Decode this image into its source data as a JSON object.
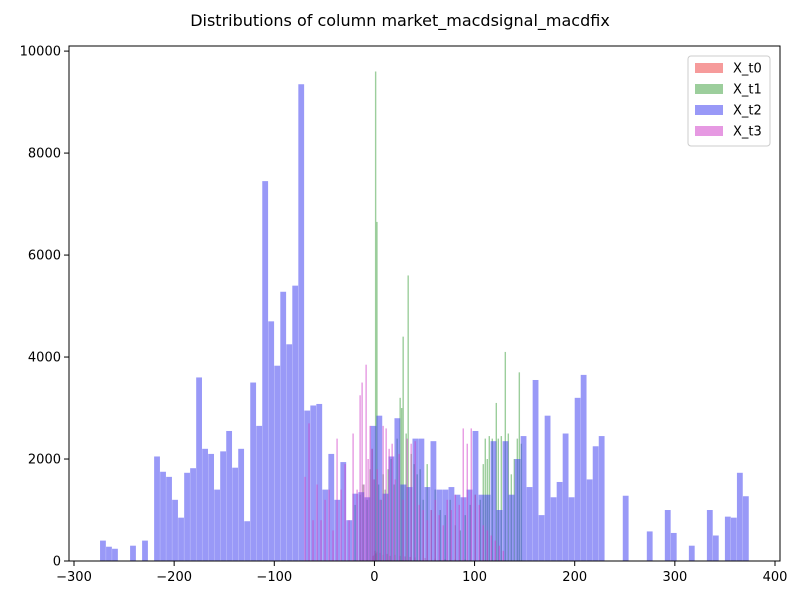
{
  "chart_data": {
    "type": "histogram",
    "title": "Distributions of column market_macdsignal_macdfix",
    "xlabel": "",
    "ylabel": "",
    "xlim": [
      -305,
      405
    ],
    "ylim": [
      0,
      10100
    ],
    "x_ticks": [
      -300,
      -200,
      -100,
      0,
      100,
      200,
      300,
      400
    ],
    "y_ticks": [
      0,
      2000,
      4000,
      6000,
      8000,
      10000
    ],
    "grid": false,
    "legend_position": "top-right",
    "colors": {
      "X_t0": "#f0595999",
      "X_t1": "#3a9e3a80",
      "X_t2": "#4040f088",
      "X_t3": "#d040c888"
    },
    "series": [
      {
        "name": "X_t0",
        "bin_width": 1,
        "bins": [
          [
            -2,
            100
          ],
          [
            -1,
            120
          ],
          [
            0,
            200
          ],
          [
            1,
            150
          ],
          [
            2,
            180
          ],
          [
            5,
            160
          ],
          [
            8,
            120
          ],
          [
            12,
            140
          ],
          [
            15,
            100
          ],
          [
            20,
            120
          ],
          [
            25,
            100
          ],
          [
            30,
            90
          ],
          [
            35,
            80
          ],
          [
            40,
            70
          ],
          [
            50,
            60
          ],
          [
            60,
            50
          ],
          [
            70,
            40
          ],
          [
            80,
            30
          ],
          [
            90,
            30
          ],
          [
            100,
            20
          ],
          [
            110,
            20
          ],
          [
            120,
            20
          ],
          [
            130,
            15
          ],
          [
            140,
            10
          ]
        ]
      },
      {
        "name": "X_t1",
        "bin_width": 1.4,
        "bins": [
          [
            -20,
            1100
          ],
          [
            -15,
            1300
          ],
          [
            -12,
            1500
          ],
          [
            -8,
            1200
          ],
          [
            -5,
            1800
          ],
          [
            -3,
            2200
          ],
          [
            -1,
            1600
          ],
          [
            0.5,
            9600
          ],
          [
            1.8,
            6650
          ],
          [
            3.5,
            1500
          ],
          [
            6,
            1200
          ],
          [
            8,
            1700
          ],
          [
            10,
            1400
          ],
          [
            13,
            1800
          ],
          [
            16,
            2000
          ],
          [
            19,
            1500
          ],
          [
            22,
            2400
          ],
          [
            25,
            3200
          ],
          [
            26.5,
            3000
          ],
          [
            28,
            4400
          ],
          [
            31,
            2500
          ],
          [
            33,
            5600
          ],
          [
            36,
            2100
          ],
          [
            39,
            1900
          ],
          [
            42,
            1700
          ],
          [
            45,
            1800
          ],
          [
            48,
            1200
          ],
          [
            52,
            1900
          ],
          [
            56,
            1000
          ],
          [
            60,
            1400
          ],
          [
            65,
            1000
          ],
          [
            70,
            900
          ],
          [
            75,
            1200
          ],
          [
            80,
            700
          ],
          [
            85,
            600
          ],
          [
            90,
            900
          ],
          [
            95,
            1100
          ],
          [
            100,
            1300
          ],
          [
            105,
            1200
          ],
          [
            108,
            1900
          ],
          [
            110,
            2400
          ],
          [
            112,
            2000
          ],
          [
            114,
            2450
          ],
          [
            117,
            2400
          ],
          [
            121,
            3100
          ],
          [
            123,
            2400
          ],
          [
            126,
            2450
          ],
          [
            130,
            4100
          ],
          [
            133,
            2500
          ],
          [
            136,
            1700
          ],
          [
            139,
            2000
          ],
          [
            142,
            2400
          ],
          [
            144,
            3700
          ],
          [
            146,
            2300
          ]
        ]
      },
      {
        "name": "X_t2",
        "bin_width": 5.8,
        "bins": [
          [
            -274,
            400
          ],
          [
            -268,
            280
          ],
          [
            -262,
            240
          ],
          [
            -256,
            0
          ],
          [
            -250,
            0
          ],
          [
            -244,
            300
          ],
          [
            -238,
            0
          ],
          [
            -232,
            400
          ],
          [
            -226,
            0
          ],
          [
            -220,
            2050
          ],
          [
            -214,
            1750
          ],
          [
            -208,
            1650
          ],
          [
            -202,
            1200
          ],
          [
            -196,
            850
          ],
          [
            -190,
            1730
          ],
          [
            -184,
            1820
          ],
          [
            -178,
            3600
          ],
          [
            -172,
            2200
          ],
          [
            -166,
            2100
          ],
          [
            -160,
            1400
          ],
          [
            -154,
            2150
          ],
          [
            -148,
            2550
          ],
          [
            -142,
            1830
          ],
          [
            -136,
            2200
          ],
          [
            -130,
            780
          ],
          [
            -124,
            3500
          ],
          [
            -118,
            2650
          ],
          [
            -112,
            7450
          ],
          [
            -106,
            4700
          ],
          [
            -100,
            3830
          ],
          [
            -94,
            5280
          ],
          [
            -88,
            4250
          ],
          [
            -82,
            5400
          ],
          [
            -76,
            9350
          ],
          [
            -70,
            2950
          ],
          [
            -64,
            3050
          ],
          [
            -58,
            3080
          ],
          [
            -52,
            1400
          ],
          [
            -46,
            2100
          ],
          [
            -40,
            1200
          ],
          [
            -34,
            1940
          ],
          [
            -28,
            800
          ],
          [
            -22,
            1320
          ],
          [
            -16,
            1350
          ],
          [
            -10,
            1250
          ],
          [
            -4,
            2650
          ],
          [
            2,
            2850
          ],
          [
            8,
            1320
          ],
          [
            14,
            2050
          ],
          [
            20,
            2800
          ],
          [
            26,
            1500
          ],
          [
            32,
            1450
          ],
          [
            38,
            2400
          ],
          [
            44,
            2400
          ],
          [
            50,
            1450
          ],
          [
            56,
            2350
          ],
          [
            62,
            1400
          ],
          [
            68,
            1400
          ],
          [
            74,
            1450
          ],
          [
            80,
            1300
          ],
          [
            86,
            1250
          ],
          [
            92,
            1400
          ],
          [
            98,
            2550
          ],
          [
            104,
            1300
          ],
          [
            110,
            1300
          ],
          [
            116,
            2350
          ],
          [
            122,
            1000
          ],
          [
            128,
            2350
          ],
          [
            134,
            1300
          ],
          [
            140,
            2000
          ],
          [
            146,
            2450
          ],
          [
            152,
            1450
          ],
          [
            158,
            3550
          ],
          [
            164,
            900
          ],
          [
            170,
            2850
          ],
          [
            176,
            1250
          ],
          [
            182,
            1550
          ],
          [
            188,
            2500
          ],
          [
            194,
            1250
          ],
          [
            200,
            3200
          ],
          [
            206,
            3650
          ],
          [
            212,
            1600
          ],
          [
            218,
            2250
          ],
          [
            224,
            2450
          ],
          [
            230,
            0
          ],
          [
            236,
            0
          ],
          [
            242,
            0
          ],
          [
            248,
            1280
          ],
          [
            254,
            0
          ],
          [
            260,
            0
          ],
          [
            266,
            0
          ],
          [
            272,
            580
          ],
          [
            278,
            0
          ],
          [
            284,
            0
          ],
          [
            290,
            1000
          ],
          [
            296,
            550
          ],
          [
            302,
            0
          ],
          [
            308,
            0
          ],
          [
            314,
            300
          ],
          [
            320,
            0
          ],
          [
            326,
            0
          ],
          [
            332,
            1000
          ],
          [
            338,
            500
          ],
          [
            344,
            0
          ],
          [
            350,
            870
          ],
          [
            356,
            850
          ],
          [
            362,
            1730
          ],
          [
            368,
            1270
          ]
        ]
      },
      {
        "name": "X_t3",
        "bin_width": 1.4,
        "bins": [
          [
            -70,
            1650
          ],
          [
            -66,
            2700
          ],
          [
            -62,
            800
          ],
          [
            -58,
            1500
          ],
          [
            -54,
            800
          ],
          [
            -50,
            1200
          ],
          [
            -46,
            1400
          ],
          [
            -42,
            600
          ],
          [
            -38,
            2400
          ],
          [
            -34,
            1400
          ],
          [
            -30,
            1900
          ],
          [
            -26,
            800
          ],
          [
            -22,
            2500
          ],
          [
            -18,
            1400
          ],
          [
            -15,
            3250
          ],
          [
            -13,
            3500
          ],
          [
            -11,
            1500
          ],
          [
            -9,
            3850
          ],
          [
            -7,
            2000
          ],
          [
            -5,
            2650
          ],
          [
            -3,
            2200
          ],
          [
            -1,
            1600
          ],
          [
            2,
            1800
          ],
          [
            5,
            1200
          ],
          [
            8,
            2650
          ],
          [
            11,
            2600
          ],
          [
            14,
            2200
          ],
          [
            17,
            2300
          ],
          [
            20,
            1600
          ],
          [
            24,
            2100
          ],
          [
            28,
            1200
          ],
          [
            32,
            2400
          ],
          [
            36,
            2300
          ],
          [
            40,
            2350
          ],
          [
            44,
            1100
          ],
          [
            48,
            1000
          ],
          [
            52,
            800
          ],
          [
            56,
            1000
          ],
          [
            60,
            1200
          ],
          [
            64,
            900
          ],
          [
            68,
            700
          ],
          [
            72,
            1200
          ],
          [
            76,
            1000
          ],
          [
            80,
            1300
          ],
          [
            84,
            1100
          ],
          [
            88,
            2600
          ],
          [
            92,
            2300
          ],
          [
            96,
            2600
          ],
          [
            100,
            1300
          ],
          [
            104,
            1100
          ],
          [
            108,
            700
          ],
          [
            112,
            600
          ],
          [
            116,
            500
          ],
          [
            120,
            400
          ],
          [
            124,
            300
          ],
          [
            128,
            200
          ]
        ]
      }
    ]
  }
}
